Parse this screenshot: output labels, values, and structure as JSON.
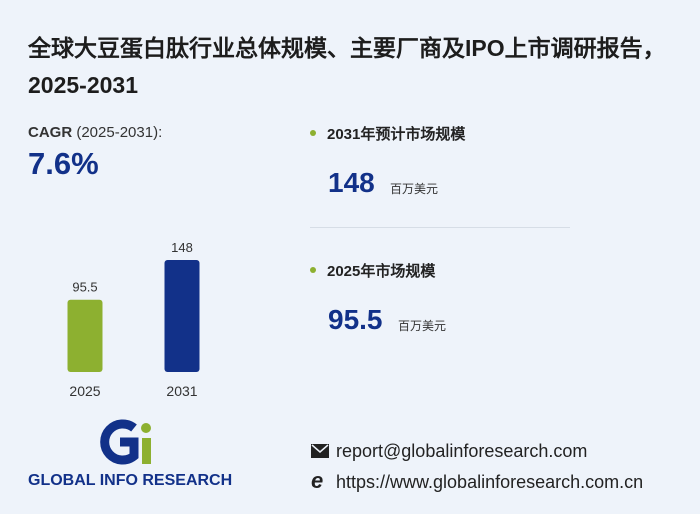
{
  "title": "全球大豆蛋白肽行业总体规模、主要厂商及IPO上市调研报告，2025-2031",
  "cagr": {
    "label": "CAGR",
    "period": "(2025-2031):",
    "value": "7.6%"
  },
  "chart_data": {
    "type": "bar",
    "categories": [
      "2025",
      "2031"
    ],
    "values": [
      95.5,
      148
    ],
    "colors": [
      "#8db030",
      "#123189"
    ]
  },
  "stats": [
    {
      "label": "2031年预计市场规模",
      "unit": "百万美元"
    },
    {
      "label": "2025年市场规模",
      "unit": "百万美元"
    }
  ],
  "logo": {
    "text": "GLOBAL INFO RESEARCH"
  },
  "contact": {
    "email": "report@globalinforesearch.com",
    "website": "https://www.globalinforesearch.com.cn"
  }
}
